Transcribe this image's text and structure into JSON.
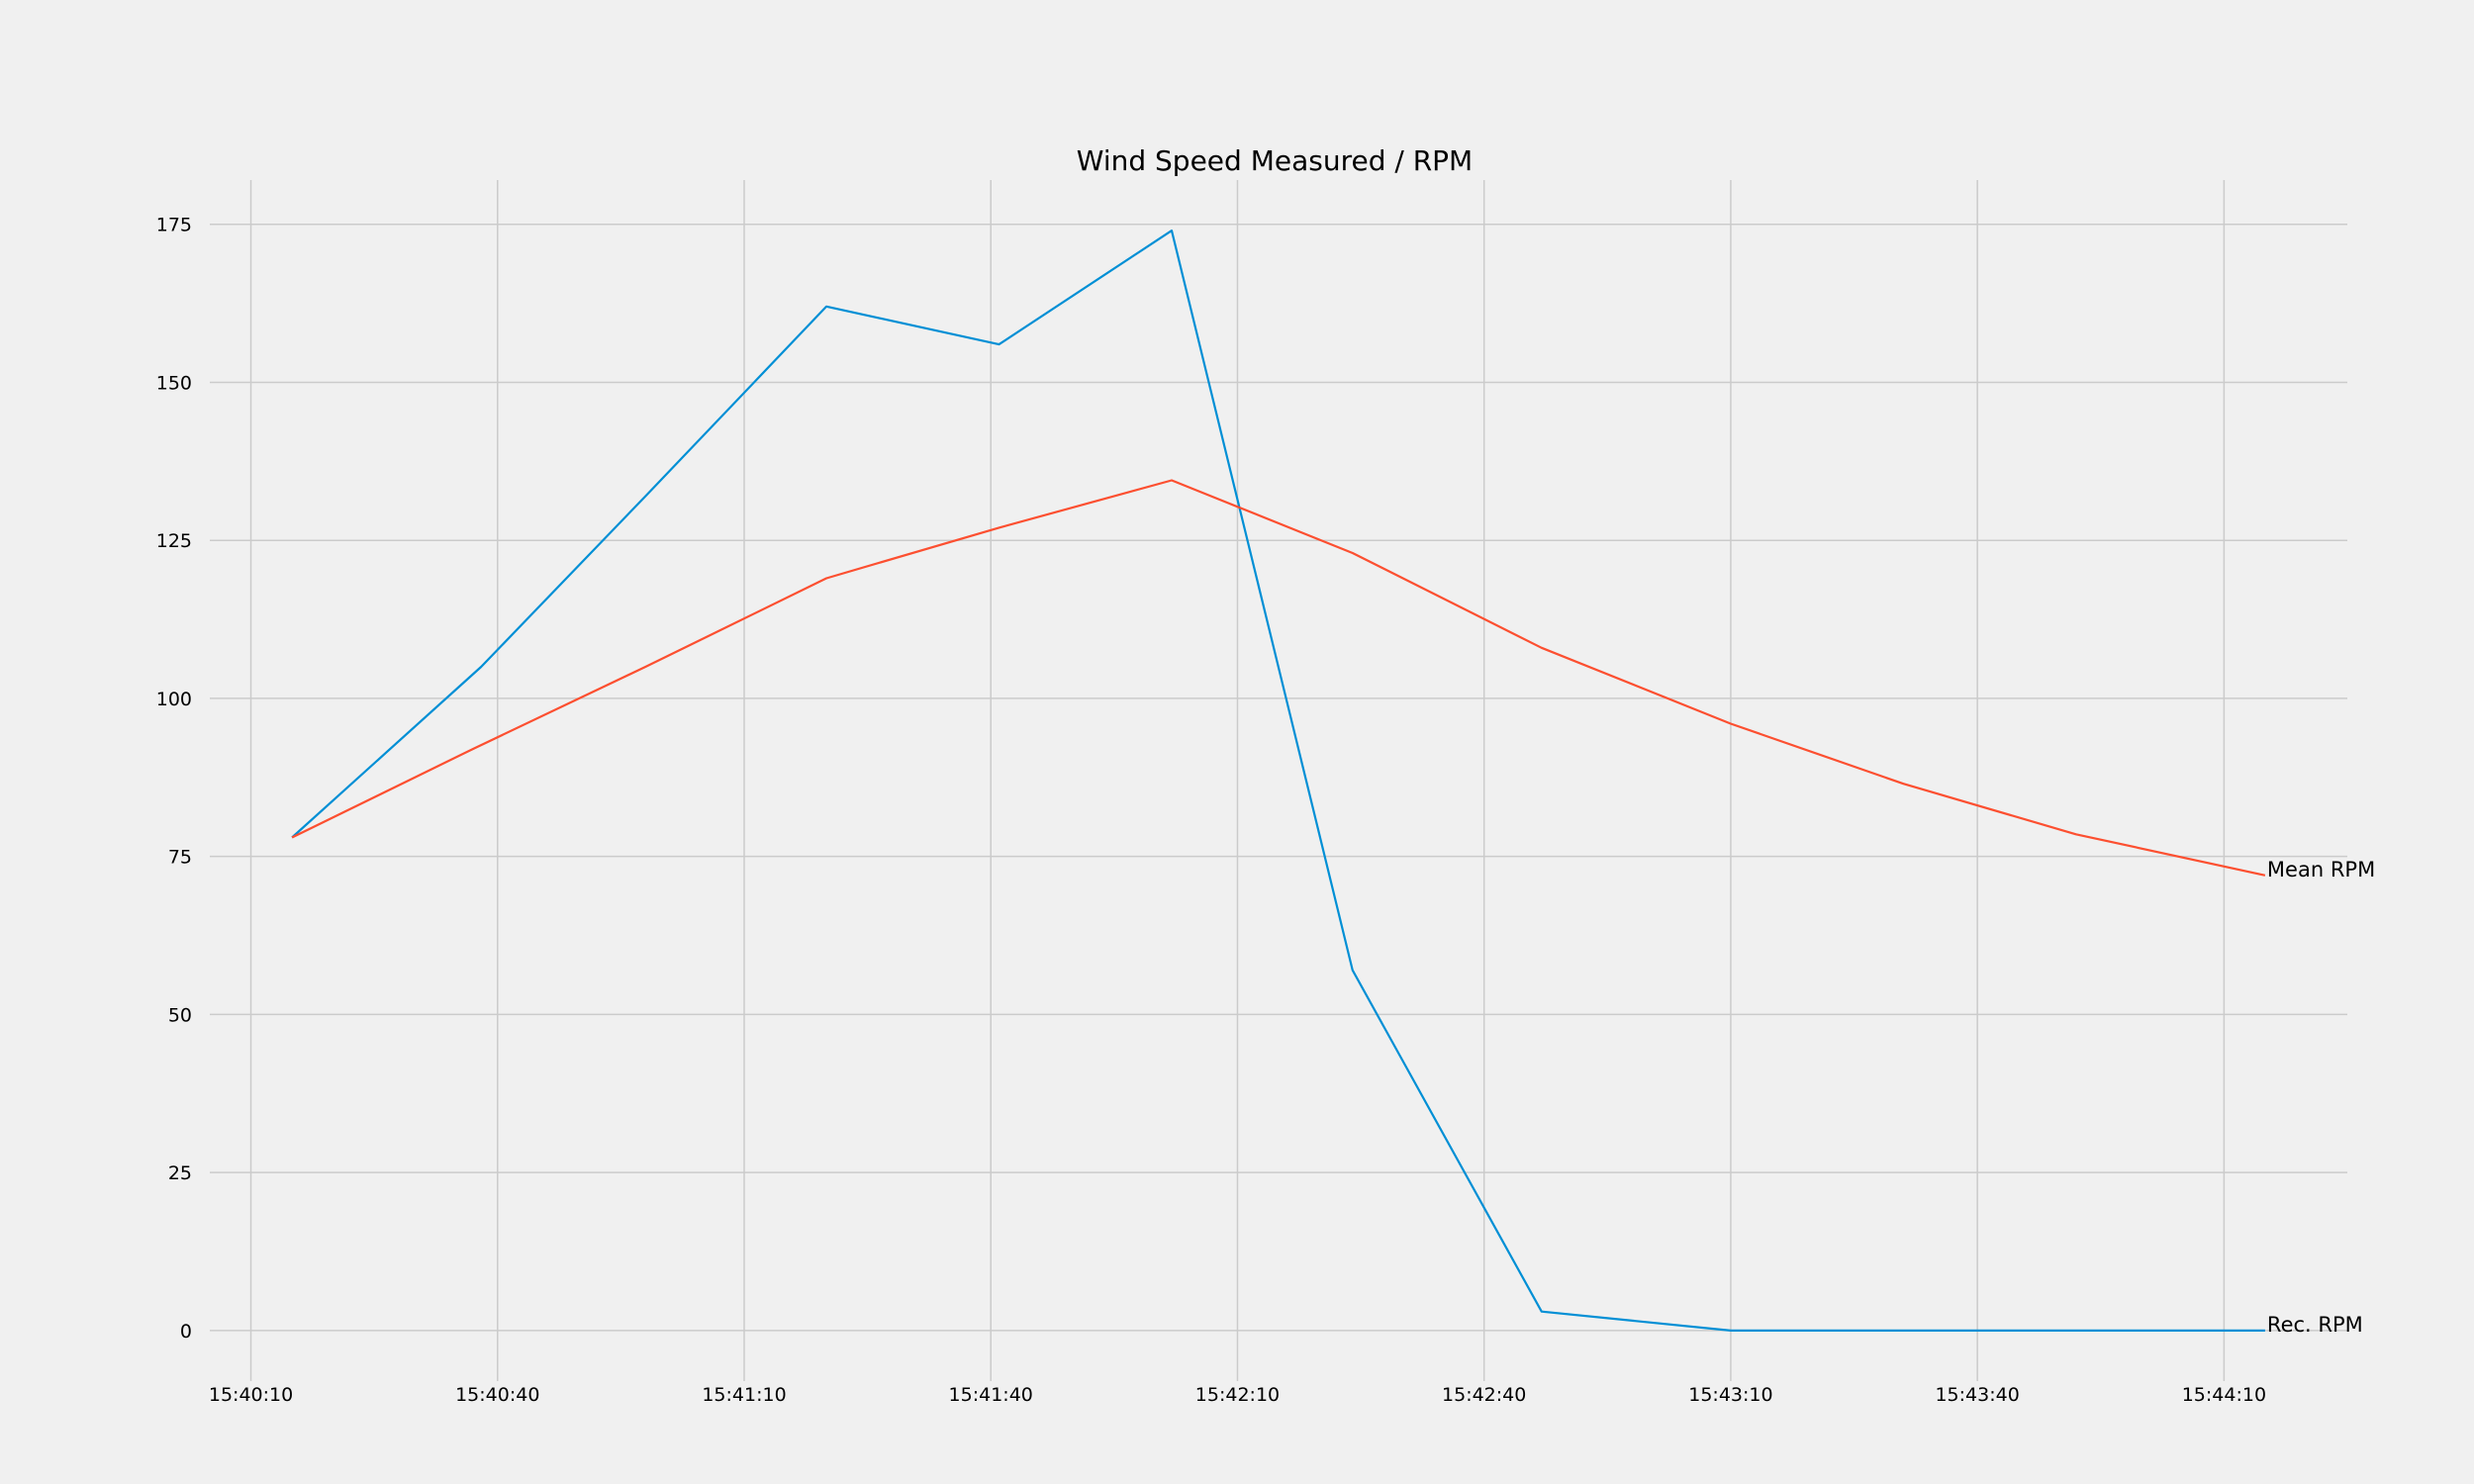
{
  "chart_data": {
    "type": "line",
    "title": "Wind Speed Measured / RPM",
    "xlabel": "",
    "ylabel": "",
    "x": [
      "15:40:15",
      "15:40:45",
      "15:41:15",
      "15:41:45",
      "15:42:10",
      "15:42:35",
      "15:43:00",
      "15:43:30",
      "15:44:00",
      "15:44:15"
    ],
    "x_ticks": [
      "15:40:10",
      "15:40:40",
      "15:41:10",
      "15:41:40",
      "15:42:10",
      "15:42:40",
      "15:43:10",
      "15:43:40",
      "15:44:10"
    ],
    "xlim": [
      "15:40:05",
      "15:44:25"
    ],
    "y_ticks": [
      0,
      25,
      50,
      75,
      100,
      125,
      150,
      175
    ],
    "ylim": [
      -8,
      182
    ],
    "grid": true,
    "series": [
      {
        "name": "Rec. RPM",
        "color": "#008fd5",
        "points": [
          [
            "15:40:15",
            78
          ],
          [
            "15:40:38",
            105
          ],
          [
            "15:40:58",
            132
          ],
          [
            "15:41:20",
            162
          ],
          [
            "15:41:41",
            156
          ],
          [
            "15:42:02",
            174
          ],
          [
            "15:42:24",
            57
          ],
          [
            "15:42:47",
            3
          ],
          [
            "15:43:10",
            0
          ],
          [
            "15:44:15",
            0
          ]
        ]
      },
      {
        "name": "Mean RPM",
        "color": "#fc4f30",
        "points": [
          [
            "15:40:15",
            78
          ],
          [
            "15:40:37",
            92
          ],
          [
            "15:40:58",
            105
          ],
          [
            "15:41:20",
            119
          ],
          [
            "15:41:41",
            127
          ],
          [
            "15:42:02",
            134.5
          ],
          [
            "15:42:24",
            123
          ],
          [
            "15:42:47",
            108
          ],
          [
            "15:43:10",
            96
          ],
          [
            "15:43:31",
            86.5
          ],
          [
            "15:43:52",
            78.5
          ],
          [
            "15:44:15",
            72
          ]
        ]
      }
    ]
  }
}
